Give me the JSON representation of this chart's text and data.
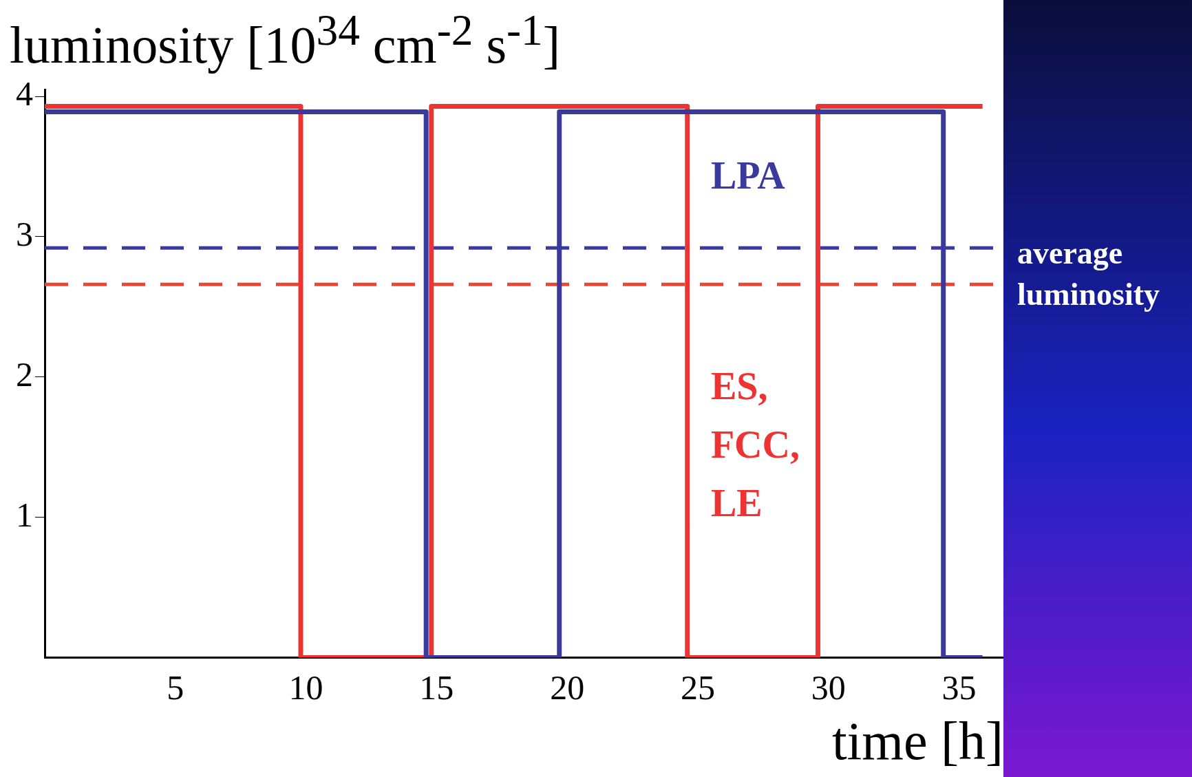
{
  "chart_data": {
    "type": "step",
    "ylabel": "luminosity [10$^{34}$ cm$^{-2}$ s$^{-1}$]",
    "xlabel": "time [h]",
    "series": [
      {
        "name": "LPA",
        "color": "#3a3a9e",
        "x": [
          0,
          14.6,
          19.7,
          34.4,
          35.9
        ],
        "values": [
          3.89,
          0,
          3.89,
          0,
          0
        ]
      },
      {
        "name": "ES, FCC, LE",
        "color": "#ee3333",
        "x": [
          0,
          9.8,
          14.8,
          24.6,
          29.6,
          35.9
        ],
        "values": [
          3.93,
          0,
          3.93,
          0,
          3.93,
          3.93
        ]
      }
    ],
    "xlim": [
      0,
      36.7
    ],
    "xticks": [
      5,
      10,
      15,
      20,
      25,
      30,
      35
    ],
    "ylim": [
      0,
      4.05
    ],
    "yticks": [
      1,
      2,
      3,
      4
    ],
    "ref_lines": [
      {
        "axis": "y",
        "value": 2.92,
        "color": "#3a3a9e",
        "line_style": "dashed"
      },
      {
        "axis": "y",
        "value": 2.66,
        "color": "#ee4433",
        "line_style": "dashed"
      }
    ],
    "annotations": [
      "average luminosity"
    ],
    "grid": false,
    "legend": false
  }
}
